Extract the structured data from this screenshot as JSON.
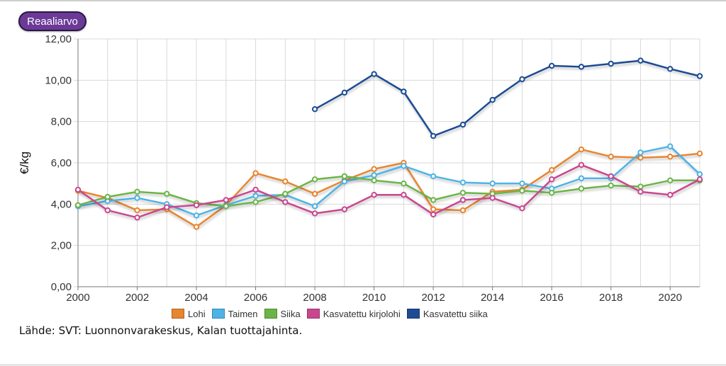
{
  "badge": {
    "label": "Reaaliarvo"
  },
  "source": "Lähde: SVT: Luonnonvarakeskus, Kalan tuottajahinta.",
  "chart_data": {
    "type": "line",
    "title": "",
    "xlabel": "",
    "ylabel": "€/kg",
    "x": [
      2000,
      2001,
      2002,
      2003,
      2004,
      2005,
      2006,
      2007,
      2008,
      2009,
      2010,
      2011,
      2012,
      2013,
      2014,
      2015,
      2016,
      2017,
      2018,
      2019,
      2020,
      2021
    ],
    "xlim": [
      2000,
      2021
    ],
    "xticks": [
      "2000",
      "2002",
      "2004",
      "2006",
      "2008",
      "2010",
      "2012",
      "2014",
      "2016",
      "2018",
      "2020"
    ],
    "ylim": [
      0,
      12
    ],
    "yticks": [
      "0,00",
      "2,00",
      "4,00",
      "6,00",
      "8,00",
      "10,00",
      "12,00"
    ],
    "grid": true,
    "legend_position": "bottom",
    "series": [
      {
        "name": "Lohi",
        "color": "#e8852f",
        "values": [
          4.65,
          4.3,
          3.7,
          3.75,
          2.9,
          3.95,
          5.5,
          5.1,
          4.5,
          5.15,
          5.7,
          6.0,
          3.75,
          3.7,
          4.6,
          4.7,
          5.65,
          6.65,
          6.3,
          6.25,
          6.3,
          6.45
        ]
      },
      {
        "name": "Taimen",
        "color": "#4db3e6",
        "values": [
          3.9,
          4.15,
          4.3,
          4.0,
          3.45,
          3.95,
          4.4,
          4.45,
          3.9,
          5.1,
          5.4,
          5.85,
          5.35,
          5.05,
          5.0,
          5.0,
          4.75,
          5.25,
          5.25,
          6.5,
          6.8,
          5.45
        ]
      },
      {
        "name": "Siika",
        "color": "#6bb547",
        "values": [
          3.95,
          4.35,
          4.6,
          4.5,
          4.05,
          3.9,
          4.1,
          4.5,
          5.2,
          5.35,
          5.15,
          5.0,
          4.2,
          4.55,
          4.5,
          4.65,
          4.55,
          4.75,
          4.9,
          4.85,
          5.15,
          5.15
        ]
      },
      {
        "name": "Kasvatettu kirjolohi",
        "color": "#c9468f",
        "values": [
          4.7,
          3.7,
          3.35,
          3.85,
          3.95,
          4.2,
          4.7,
          4.1,
          3.55,
          3.75,
          4.45,
          4.45,
          3.5,
          4.2,
          4.3,
          3.8,
          5.2,
          5.9,
          5.35,
          4.6,
          4.45,
          5.2
        ]
      },
      {
        "name": "Kasvatettu siika",
        "color": "#1d4c94",
        "values": [
          null,
          null,
          null,
          null,
          null,
          null,
          null,
          null,
          8.6,
          9.4,
          10.3,
          9.45,
          7.3,
          7.85,
          9.05,
          10.05,
          10.7,
          10.65,
          10.8,
          10.95,
          10.55,
          10.2
        ]
      }
    ]
  }
}
